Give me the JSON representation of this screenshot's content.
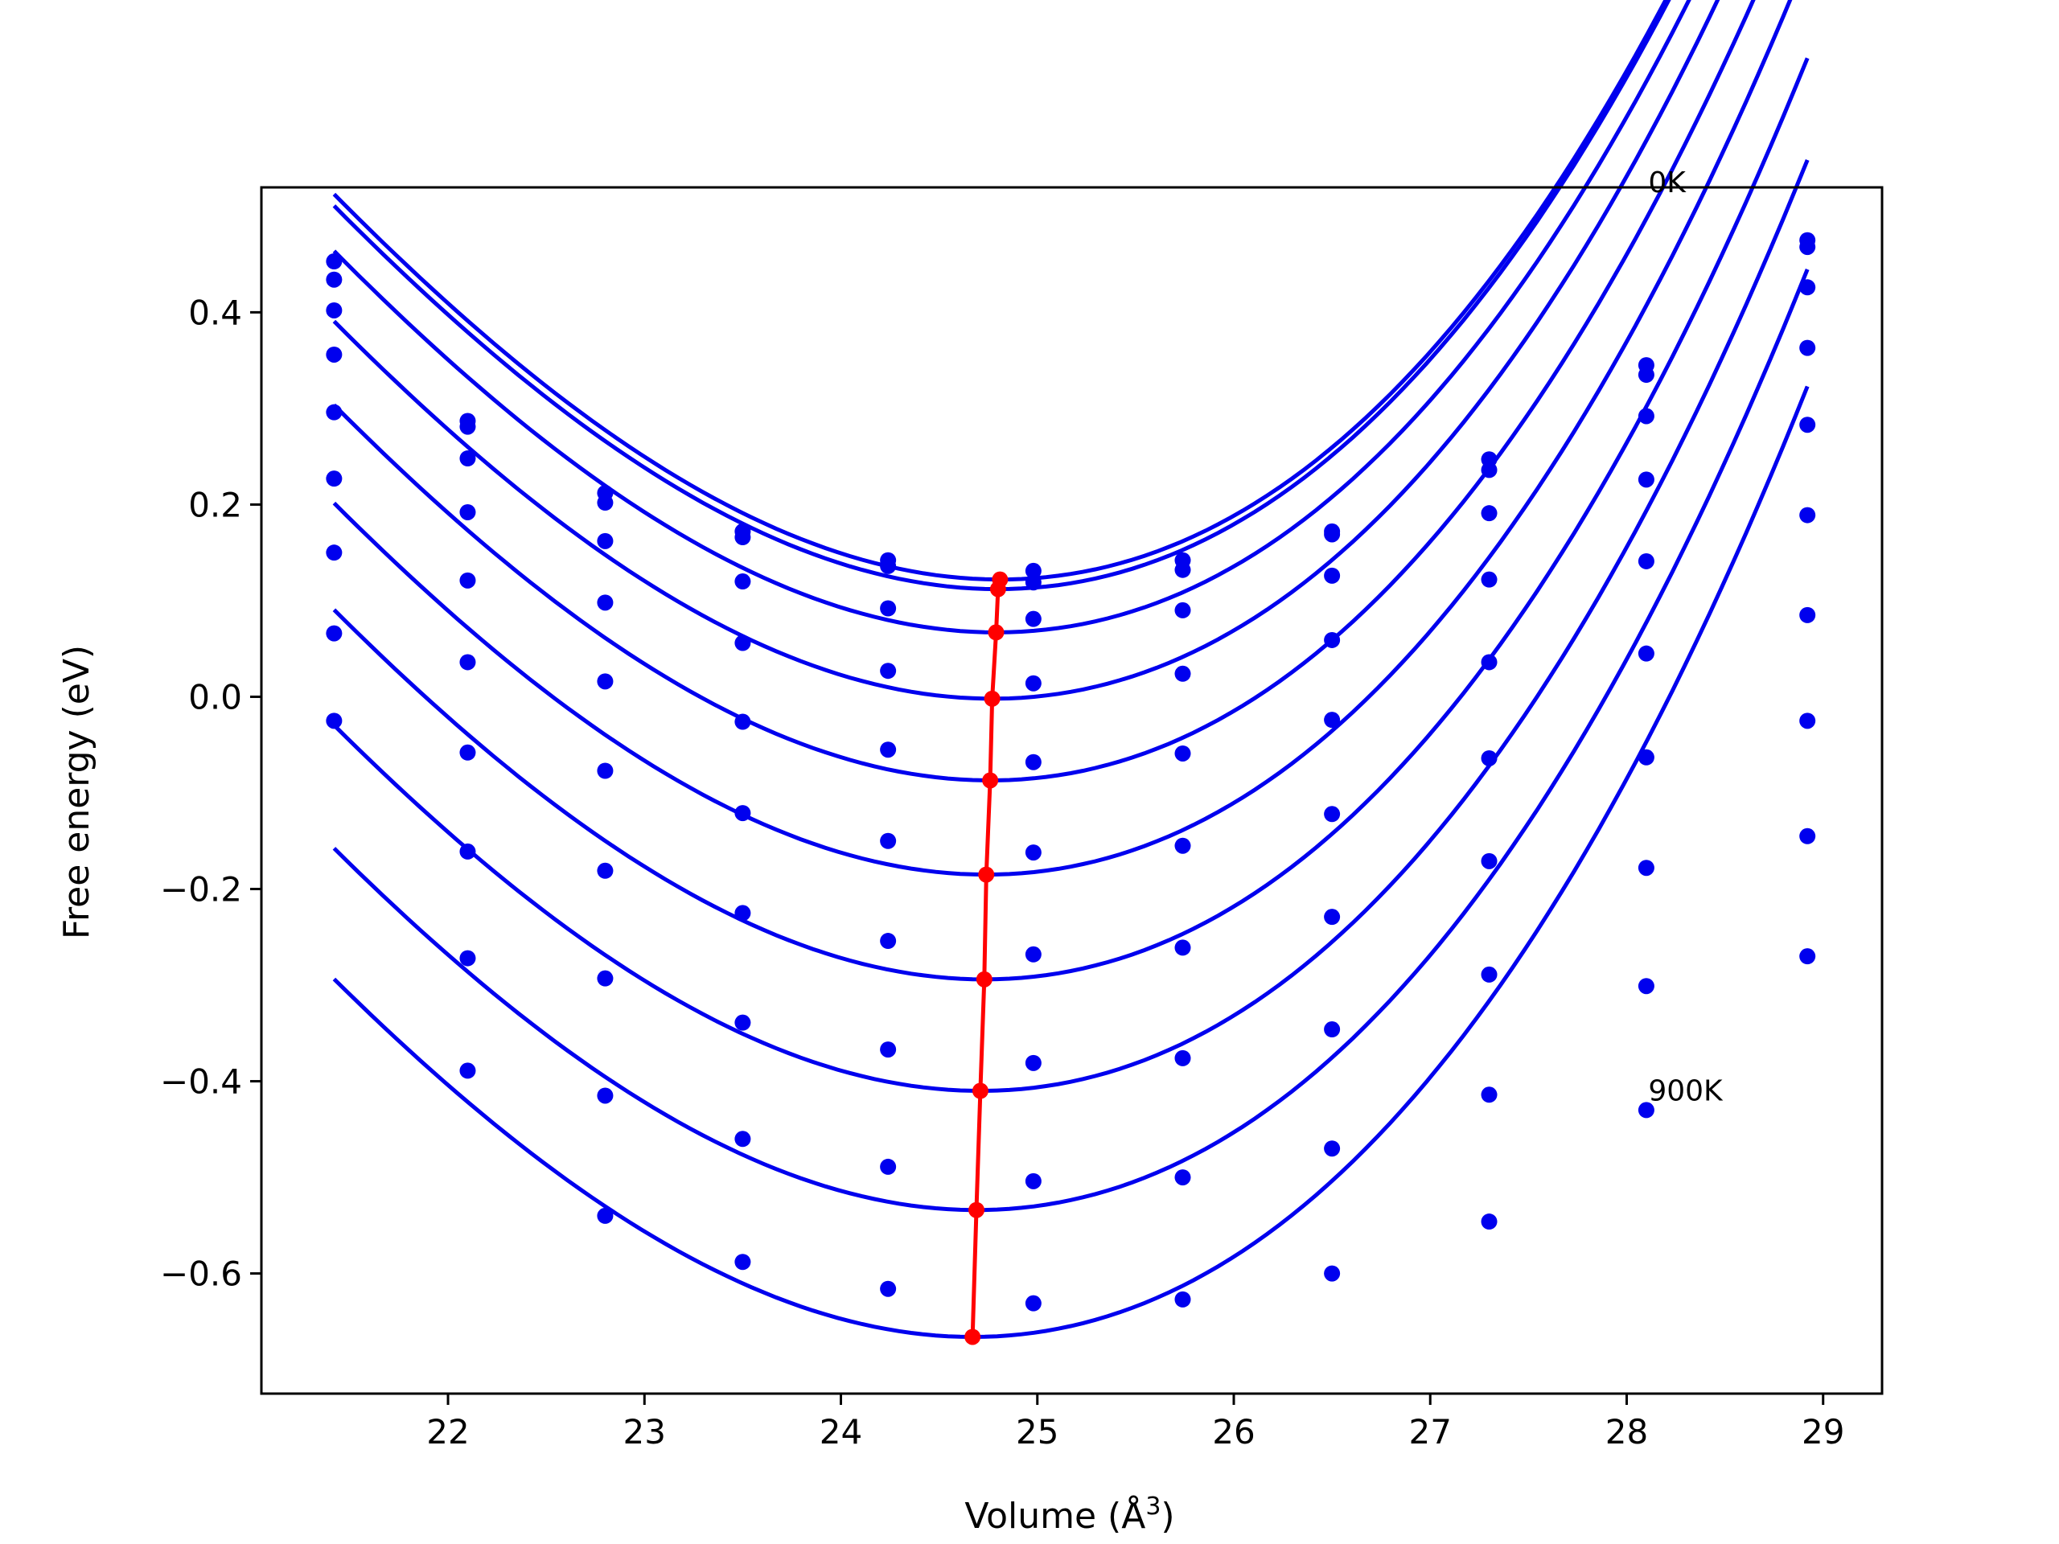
{
  "chart_data": {
    "type": "scatter",
    "title": "",
    "xlabel": "Volume (Å",
    "xlabel_sup": "3",
    "xlabel_end": ")",
    "ylabel": "Free energy (eV)",
    "xlim": [
      21.05,
      29.3
    ],
    "ylim": [
      -0.725,
      0.53
    ],
    "xticks": [
      22,
      23,
      24,
      25,
      26,
      27,
      28,
      29
    ],
    "yticks": [
      0.4,
      0.2,
      0.0,
      -0.2,
      -0.4,
      -0.6
    ],
    "ytick_labels": [
      "0.4",
      "0.2",
      "0.0",
      "−0.2",
      "−0.4",
      "−0.6"
    ],
    "grid": false,
    "volumes": [
      21.42,
      22.1,
      22.8,
      23.5,
      24.24,
      24.98,
      25.74,
      26.5,
      27.3,
      28.1,
      28.92
    ],
    "series": [
      {
        "label": "0K",
        "points": [
          0.453,
          0.287,
          0.212,
          0.172,
          0.142,
          0.131,
          0.142,
          0.172,
          0.247,
          0.345,
          0.475
        ],
        "fit": {
          "vmin": 24.81,
          "fmin": 0.122,
          "a": 0.0437,
          "b": 0.0026
        }
      },
      {
        "points": [
          0.434,
          0.281,
          0.202,
          0.166,
          0.136,
          0.119,
          0.132,
          0.169,
          0.236,
          0.335,
          0.468
        ],
        "fit": {
          "vmin": 24.8,
          "fmin": 0.112,
          "a": 0.0437,
          "b": 0.0026
        }
      },
      {
        "points": [
          0.402,
          0.248,
          0.162,
          0.12,
          0.092,
          0.081,
          0.09,
          0.126,
          0.191,
          0.292,
          0.426
        ],
        "fit": {
          "vmin": 24.79,
          "fmin": 0.067,
          "a": 0.0437,
          "b": 0.0026
        }
      },
      {
        "points": [
          0.356,
          0.192,
          0.098,
          0.056,
          0.027,
          0.014,
          0.024,
          0.059,
          0.122,
          0.226,
          0.363
        ],
        "fit": {
          "vmin": 24.77,
          "fmin": -0.002,
          "a": 0.0437,
          "b": 0.0026
        }
      },
      {
        "points": [
          0.296,
          0.121,
          0.016,
          -0.026,
          -0.055,
          -0.068,
          -0.059,
          -0.024,
          0.036,
          0.141,
          0.283
        ],
        "fit": {
          "vmin": 24.76,
          "fmin": -0.087,
          "a": 0.0437,
          "b": 0.0026
        }
      },
      {
        "points": [
          0.227,
          0.036,
          -0.077,
          -0.121,
          -0.15,
          -0.162,
          -0.155,
          -0.122,
          -0.064,
          0.045,
          0.189
        ],
        "fit": {
          "vmin": 24.74,
          "fmin": -0.185,
          "a": 0.0437,
          "b": 0.0026
        }
      },
      {
        "points": [
          0.15,
          -0.058,
          -0.181,
          -0.225,
          -0.254,
          -0.268,
          -0.261,
          -0.229,
          -0.171,
          -0.063,
          0.085
        ],
        "fit": {
          "vmin": 24.73,
          "fmin": -0.294,
          "a": 0.0437,
          "b": 0.0026
        }
      },
      {
        "points": [
          0.066,
          -0.161,
          -0.293,
          -0.339,
          -0.367,
          -0.381,
          -0.376,
          -0.346,
          -0.289,
          -0.178,
          -0.025
        ],
        "fit": {
          "vmin": 24.71,
          "fmin": -0.41,
          "a": 0.0437,
          "b": 0.0026
        }
      },
      {
        "points": [
          -0.025,
          -0.272,
          -0.415,
          -0.46,
          -0.489,
          -0.504,
          -0.5,
          -0.47,
          -0.414,
          -0.301,
          -0.145
        ],
        "fit": {
          "vmin": 24.69,
          "fmin": -0.534,
          "a": 0.0437,
          "b": 0.0026
        }
      },
      {
        "label": "900K",
        "points": [
          null,
          -0.389,
          -0.54,
          -0.588,
          -0.616,
          -0.631,
          -0.627,
          -0.6,
          -0.546,
          -0.43,
          -0.27
        ],
        "fit": {
          "vmin": 24.67,
          "fmin": -0.666,
          "a": 0.0437,
          "b": 0.0026
        }
      }
    ],
    "fit_range": [
      21.42,
      28.92
    ],
    "minimum_line": {
      "v": [
        24.81,
        24.8,
        24.79,
        24.77,
        24.76,
        24.74,
        24.73,
        24.71,
        24.69,
        24.67
      ],
      "f": [
        0.122,
        0.112,
        0.067,
        -0.002,
        -0.087,
        -0.185,
        -0.294,
        -0.41,
        -0.534,
        -0.666
      ]
    },
    "annotations": [
      {
        "text": "0K",
        "x": 28.11,
        "y": 0.525
      },
      {
        "text": "900K",
        "x": 28.11,
        "y": -0.42
      }
    ],
    "colors": {
      "points": "#0000ee",
      "fits": "#0000ee",
      "minimum": "#ff0000",
      "axes": "#000000"
    }
  }
}
